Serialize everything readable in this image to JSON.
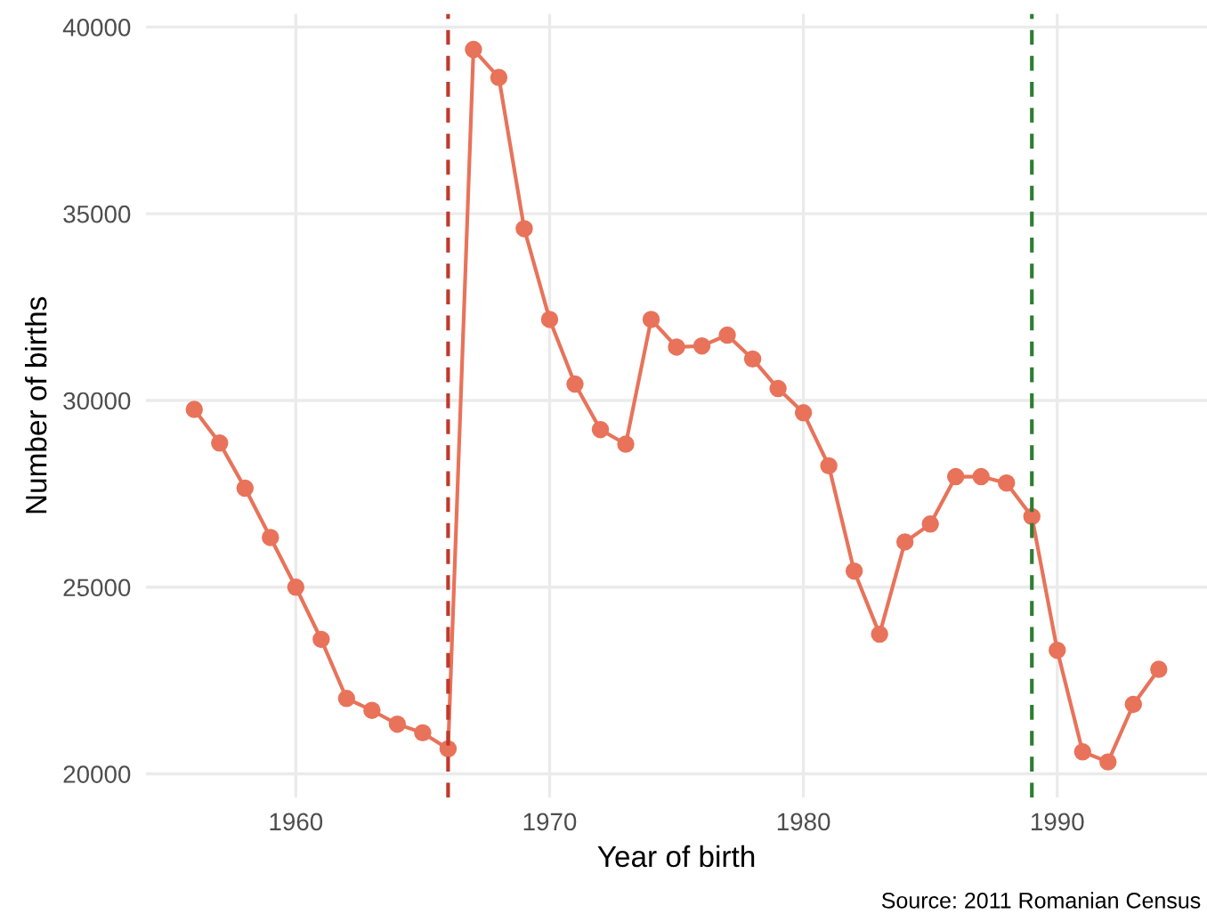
{
  "chart_data": {
    "type": "line",
    "xlabel": "Year of birth",
    "ylabel": "Number of births",
    "x": [
      1956,
      1957,
      1958,
      1959,
      1960,
      1961,
      1962,
      1963,
      1964,
      1965,
      1966,
      1967,
      1968,
      1969,
      1970,
      1971,
      1972,
      1973,
      1974,
      1975,
      1976,
      1977,
      1978,
      1979,
      1980,
      1981,
      1982,
      1983,
      1984,
      1985,
      1986,
      1987,
      1988,
      1989,
      1990,
      1991,
      1992,
      1993,
      1994
    ],
    "series": [
      {
        "color": "#e8735a",
        "values": [
          29760,
          28860,
          27650,
          26330,
          25000,
          23600,
          22020,
          21700,
          21330,
          21100,
          20670,
          39400,
          38650,
          34600,
          32170,
          30440,
          29220,
          28830,
          32170,
          31430,
          31460,
          31750,
          31110,
          30320,
          29670,
          28250,
          25430,
          23740,
          26210,
          26690,
          27960,
          27960,
          27790,
          26890,
          23310,
          20590,
          20320,
          21860,
          22800
        ]
      }
    ],
    "marker": "circle",
    "line_style": "solid",
    "xlim": [
      1954.1,
      1995.9
    ],
    "xticks": [
      1960,
      1970,
      1980,
      1990
    ],
    "ylim": [
      19366,
      40354
    ],
    "yticks": [
      20000,
      25000,
      30000,
      35000,
      40000
    ],
    "grid": true,
    "legend": false,
    "ref_lines": [
      {
        "axis": "x",
        "value": 1966,
        "color": "#c0392b",
        "line_style": "dashed"
      },
      {
        "axis": "x",
        "value": 1989,
        "color": "#2e7d32",
        "line_style": "dashed"
      }
    ],
    "annotations": [
      "Source: 2011 Romanian Census"
    ]
  }
}
